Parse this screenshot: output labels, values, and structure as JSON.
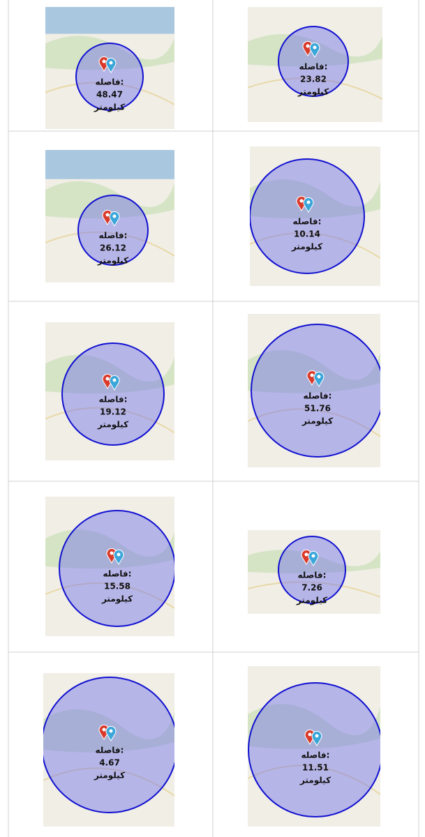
{
  "cells": [
    {
      "label": "فاصله:",
      "distance": 48.47,
      "unit": "کیلومتر"
    },
    {
      "label": "فاصله:",
      "distance": 23.82,
      "unit": "کیلومتر"
    },
    {
      "label": "فاصله:",
      "distance": 26.12,
      "unit": "کیلومتر"
    },
    {
      "label": "فاصله:",
      "distance": 10.14,
      "unit": "کیلومتر"
    },
    {
      "label": "فاصله:",
      "distance": 19.12,
      "unit": "کیلومتر"
    },
    {
      "label": "فاصله:",
      "distance": 51.76,
      "unit": "کیلومتر"
    },
    {
      "label": "فاصله:",
      "distance": 15.58,
      "unit": "کیلومتر"
    },
    {
      "label": "فاصله:",
      "distance": 7.26,
      "unit": "کیلومتر"
    },
    {
      "label": "فاصله:",
      "distance": 4.67,
      "unit": "کیلومتر"
    },
    {
      "label": "فاصله:",
      "distance": 11.51,
      "unit": "کیلومتر"
    }
  ]
}
